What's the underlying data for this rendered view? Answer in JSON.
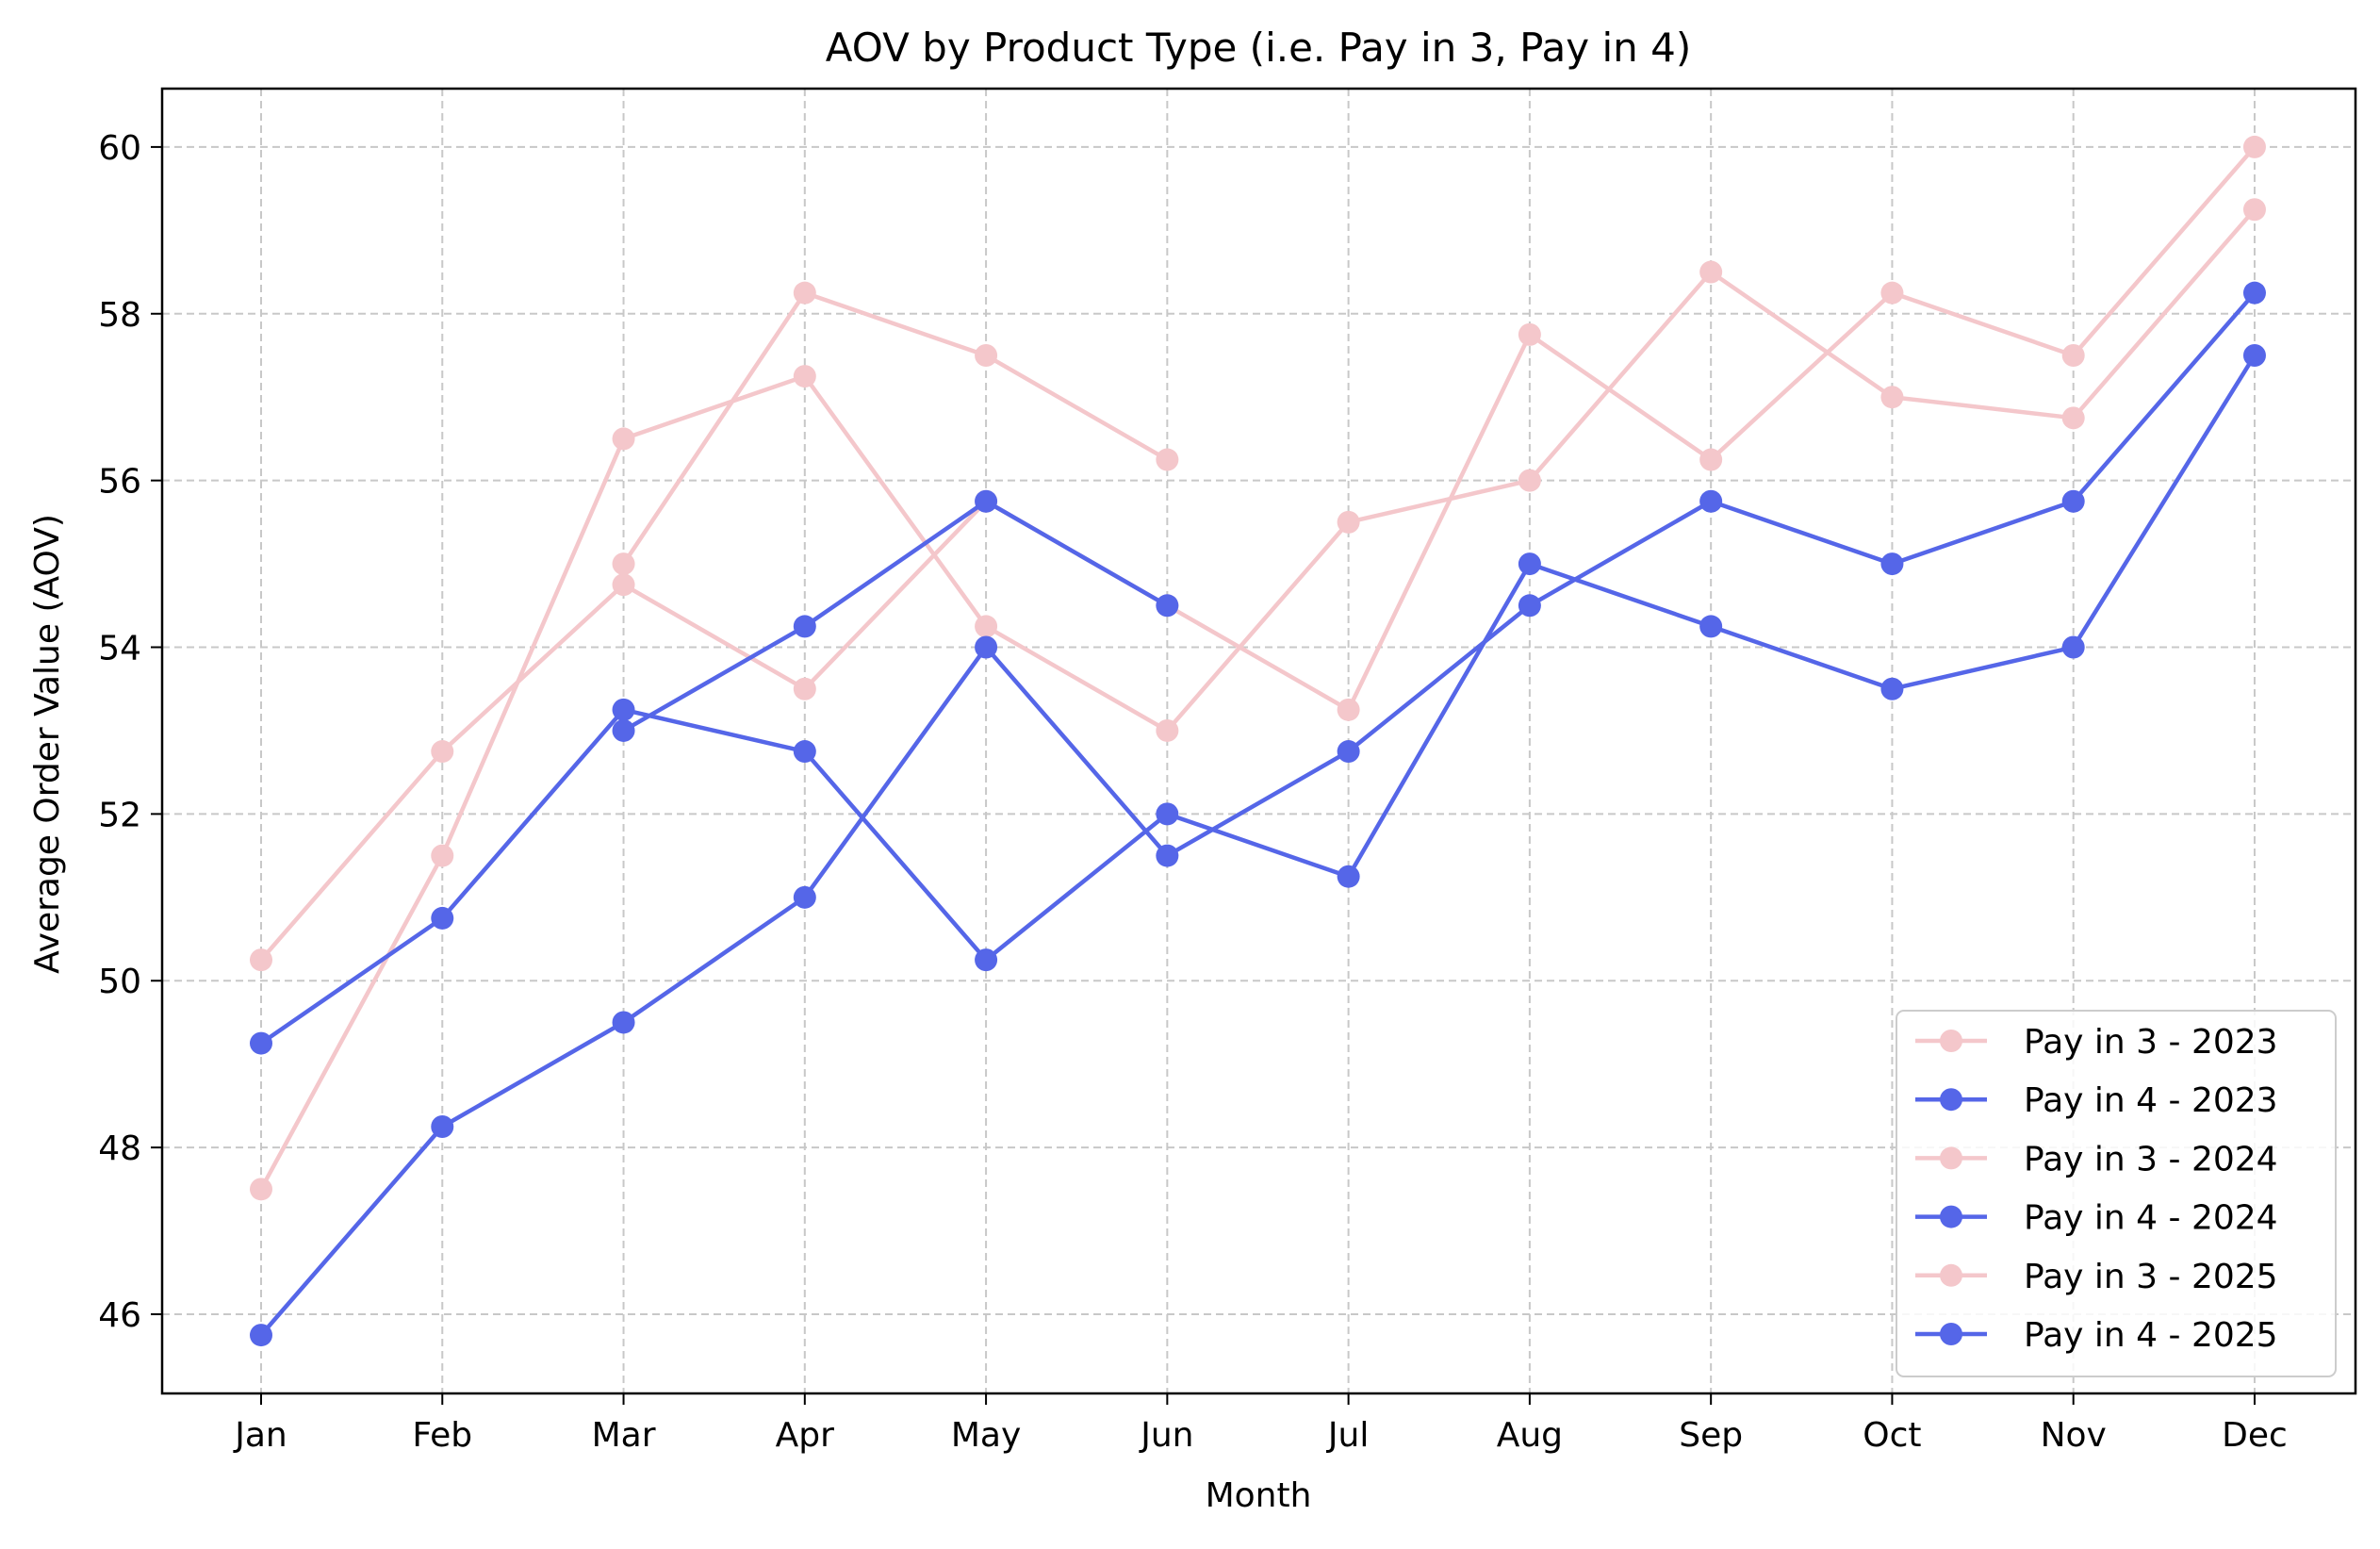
{
  "chart_data": {
    "type": "line",
    "title": "AOV by Product Type (i.e. Pay in 3, Pay in 4)",
    "xlabel": "Month",
    "ylabel": "Average Order Value (AOV)",
    "categories": [
      "Jan",
      "Feb",
      "Mar",
      "Apr",
      "May",
      "Jun",
      "Jul",
      "Aug",
      "Sep",
      "Oct",
      "Nov",
      "Dec"
    ],
    "ylim": [
      45.05,
      60.7
    ],
    "yticks": [
      46,
      48,
      50,
      52,
      54,
      56,
      58,
      60
    ],
    "grid": true,
    "legend_position": "lower-right",
    "series": [
      {
        "name": "Pay in 3 - 2023",
        "color": "#F4C7CB",
        "values": [
          47.5,
          51.5,
          56.5,
          57.25,
          54.25,
          53.0,
          55.5,
          56.0,
          58.5,
          57.0,
          56.75,
          59.25
        ]
      },
      {
        "name": "Pay in 4 - 2023",
        "color": "#5566E8",
        "values": [
          49.25,
          50.75,
          53.25,
          52.75,
          50.25,
          52.0,
          51.25,
          55.0,
          54.25,
          53.5,
          54.0,
          57.5
        ]
      },
      {
        "name": "Pay in 3 - 2024",
        "color": "#F4C7CB",
        "values": [
          50.25,
          52.75,
          54.75,
          53.5,
          55.75,
          54.5,
          53.25,
          57.75,
          56.25,
          58.25,
          57.5,
          60.0
        ]
      },
      {
        "name": "Pay in 4 - 2024",
        "color": "#5566E8",
        "values": [
          45.75,
          48.25,
          49.5,
          51.0,
          54.0,
          51.5,
          52.75,
          54.5,
          55.75,
          55.0,
          55.75,
          58.25
        ]
      },
      {
        "name": "Pay in 3 - 2025",
        "color": "#F4C7CB",
        "values": [
          null,
          null,
          55.0,
          58.25,
          57.5,
          56.25,
          null,
          null,
          null,
          null,
          null,
          null
        ]
      },
      {
        "name": "Pay in 4 - 2025",
        "color": "#5566E8",
        "values": [
          null,
          null,
          53.0,
          54.25,
          55.75,
          54.5,
          null,
          null,
          null,
          null,
          null,
          null
        ]
      }
    ]
  }
}
